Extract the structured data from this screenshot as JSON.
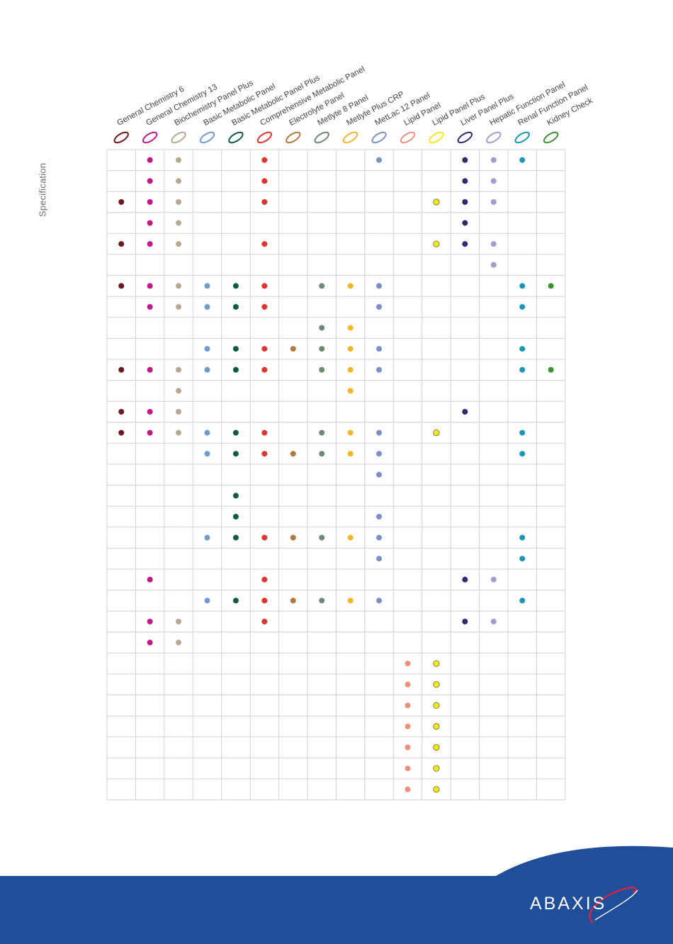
{
  "side_label": "Specification",
  "columns": [
    {
      "label": "General Chemistry 6",
      "color": "#6b1a1e"
    },
    {
      "label": "General Chemistry 13",
      "color": "#c2188a"
    },
    {
      "label": "Biochemistry Panel Plus",
      "color": "#b8a890"
    },
    {
      "label": "Basic Metabolic Panel",
      "color": "#6f9bd0"
    },
    {
      "label": "Basic Metabolic Panel Plus",
      "color": "#0e5a44"
    },
    {
      "label": "Comprehensive Metabolic Panel",
      "color": "#e2342c"
    },
    {
      "label": "Electrolyte Panel",
      "color": "#b07a3e"
    },
    {
      "label": "Metlyte 8 Panel",
      "color": "#6f8a72"
    },
    {
      "label": "Metlyte Plus CRP",
      "color": "#f0b62c"
    },
    {
      "label": "MetLac 12 Panel",
      "color": "#7b8fc8"
    },
    {
      "label": "Lipid Panel",
      "color": "#f0907e"
    },
    {
      "label": "Lipid Panel Plus",
      "color": "#f6e81c"
    },
    {
      "label": "Liver Panel Plus",
      "color": "#33286e"
    },
    {
      "label": "Hepatic Function Panel",
      "color": "#a69ccb"
    },
    {
      "label": "Renal Function Panel",
      "color": "#1996b8"
    },
    {
      "label": "Kidney Check",
      "color": "#3e9234"
    }
  ],
  "rows": [
    [
      1,
      2,
      5,
      9,
      12,
      13,
      14
    ],
    [
      1,
      2,
      5,
      12,
      13
    ],
    [
      0,
      1,
      2,
      5,
      11,
      12,
      13
    ],
    [
      1,
      2,
      12
    ],
    [
      0,
      1,
      2,
      5,
      11,
      12,
      13
    ],
    [
      13
    ],
    [
      0,
      1,
      2,
      3,
      4,
      5,
      7,
      8,
      9,
      14,
      15
    ],
    [
      1,
      2,
      3,
      4,
      5,
      9,
      14
    ],
    [
      7,
      8
    ],
    [
      3,
      4,
      5,
      6,
      7,
      8,
      9,
      14
    ],
    [
      0,
      1,
      2,
      3,
      4,
      5,
      7,
      8,
      9,
      14,
      15
    ],
    [
      2,
      8
    ],
    [
      0,
      1,
      2,
      12
    ],
    [
      0,
      1,
      2,
      3,
      4,
      5,
      7,
      8,
      9,
      11,
      14
    ],
    [
      3,
      4,
      5,
      6,
      7,
      8,
      9,
      14
    ],
    [
      9
    ],
    [
      4
    ],
    [
      4,
      9
    ],
    [
      3,
      4,
      5,
      6,
      7,
      8,
      9,
      14
    ],
    [
      9,
      14
    ],
    [
      1,
      5,
      12,
      13
    ],
    [
      3,
      4,
      5,
      6,
      7,
      8,
      9,
      14
    ],
    [
      1,
      2,
      5,
      12,
      13
    ],
    [
      1,
      2
    ],
    [
      10,
      11
    ],
    [
      10,
      11
    ],
    [
      10,
      11
    ],
    [
      10,
      11
    ],
    [
      10,
      11
    ],
    [
      10,
      11
    ],
    [
      10,
      11
    ]
  ],
  "logo": {
    "text": "ABAXIS",
    "accent_color": "#e3203a"
  },
  "footer_color": "#1f4e9a"
}
